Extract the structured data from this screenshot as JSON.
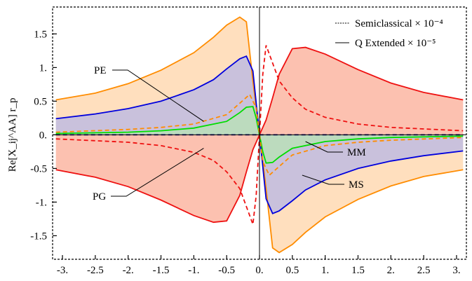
{
  "chart_data": {
    "type": "line",
    "title": "",
    "xlabel": "",
    "ylabel": "Re[X_ij^AA] r_p",
    "xlim": [
      -3.15,
      3.15
    ],
    "ylim": [
      -1.85,
      1.9
    ],
    "xticks": [
      -3.0,
      -2.5,
      -2.0,
      -1.5,
      -1.0,
      -0.5,
      0.0,
      0.5,
      1.0,
      1.5,
      2.0,
      2.5,
      3.0
    ],
    "xtick_labels": [
      "-3.",
      "-2.5",
      "-2.",
      "-1.5",
      "-1.",
      "-0.5",
      "0.",
      "0.5",
      "1.",
      "1.5",
      "2.",
      "2.5",
      "3."
    ],
    "yticks": [
      1.5,
      1.0,
      0.5,
      0.0,
      -0.5,
      -1.0,
      -1.5
    ],
    "ytick_labels": [
      "1.5",
      "1.",
      "0.5",
      "0.",
      "-0.5",
      "-1.",
      "-1.5"
    ],
    "grid": false,
    "legend_position": "top-right",
    "legend": [
      {
        "label": "Semiclassical × 10⁻⁴",
        "style": "dashed"
      },
      {
        "label": "Q Extended × 10⁻⁵",
        "style": "solid"
      }
    ],
    "annotations": [
      {
        "label": "PE",
        "target_x": -0.85,
        "target_y": 0.2
      },
      {
        "label": "PG",
        "target_x": -0.85,
        "target_y": -0.2
      },
      {
        "label": "MM",
        "target_x": 0.7,
        "target_y": -0.1
      },
      {
        "label": "MS",
        "target_x": 0.65,
        "target_y": -0.6
      }
    ],
    "colors": {
      "orange": "#ff8c00",
      "red": "#ee1111",
      "blue": "#0000dd",
      "green": "#00dd00",
      "navy": "#000080",
      "fill_orange": "#ffd9b3",
      "fill_red": "#fbb6a2",
      "fill_blue": "#b7b7e6",
      "fill_green": "#b6e6b0"
    },
    "series": [
      {
        "key": "orange_solid",
        "color": "#ff8c00",
        "style": "solid",
        "x": [
          -3.1,
          -2.5,
          -2.0,
          -1.5,
          -1.0,
          -0.7,
          -0.5,
          -0.3,
          -0.2,
          -0.1,
          0.0
        ],
        "y": [
          0.52,
          0.62,
          0.76,
          0.96,
          1.22,
          1.45,
          1.63,
          1.75,
          1.68,
          0.8,
          0.0
        ],
        "mirror": "odd"
      },
      {
        "key": "blue_solid",
        "color": "#0000dd",
        "style": "solid",
        "x": [
          -3.1,
          -2.5,
          -2.0,
          -1.5,
          -1.0,
          -0.7,
          -0.5,
          -0.3,
          -0.2,
          -0.1,
          0.0
        ],
        "y": [
          0.24,
          0.31,
          0.39,
          0.5,
          0.67,
          0.82,
          0.98,
          1.13,
          1.17,
          0.95,
          0.0
        ],
        "mirror": "odd"
      },
      {
        "key": "green_solid",
        "color": "#00dd00",
        "style": "solid",
        "x": [
          -3.1,
          -2.0,
          -1.5,
          -1.0,
          -0.5,
          -0.3,
          -0.2,
          -0.1,
          -0.05,
          0.0
        ],
        "y": [
          0.02,
          0.04,
          0.06,
          0.1,
          0.2,
          0.33,
          0.41,
          0.42,
          0.25,
          0.0
        ],
        "mirror": "odd"
      },
      {
        "key": "red_solid",
        "color": "#ee1111",
        "style": "solid",
        "x": [
          -3.1,
          -2.5,
          -2.0,
          -1.5,
          -1.0,
          -0.7,
          -0.5,
          -0.3,
          -0.2,
          -0.1,
          0.0
        ],
        "y": [
          -0.52,
          -0.63,
          -0.77,
          -0.97,
          -1.2,
          -1.3,
          -1.28,
          -0.9,
          -0.55,
          -0.22,
          0.0
        ],
        "mirror": "odd"
      },
      {
        "key": "orange_dashed",
        "color": "#ff8c00",
        "style": "dashed",
        "x": [
          -3.1,
          -2.0,
          -1.5,
          -1.0,
          -0.5,
          -0.3,
          -0.15,
          -0.05,
          0.0
        ],
        "y": [
          0.04,
          0.08,
          0.11,
          0.16,
          0.3,
          0.47,
          0.6,
          0.4,
          0.0
        ],
        "mirror": "odd"
      },
      {
        "key": "red_dashed",
        "color": "#ee1111",
        "style": "dashed",
        "x": [
          -3.1,
          -2.0,
          -1.5,
          -1.0,
          -0.7,
          -0.5,
          -0.3,
          -0.15,
          -0.1,
          -0.05,
          0.0
        ],
        "y": [
          -0.06,
          -0.11,
          -0.16,
          -0.26,
          -0.38,
          -0.55,
          -0.8,
          -1.2,
          -1.33,
          -0.9,
          0.0
        ],
        "mirror": "odd"
      },
      {
        "key": "navy_dashed",
        "color": "#000080",
        "style": "dashed",
        "x": [
          -3.1,
          0.0,
          3.1
        ],
        "y": [
          0.0,
          0.0,
          0.0
        ],
        "mirror": "none"
      }
    ],
    "bands": [
      {
        "color": "#ffd9b3",
        "opacity": 0.85,
        "upper": "orange_solid",
        "lower": "zero"
      },
      {
        "color": "#b7b7e6",
        "opacity": 0.75,
        "upper": "blue_solid",
        "lower": "zero"
      },
      {
        "color": "#b6e6b0",
        "opacity": 0.7,
        "upper": "green_solid",
        "lower": "zero"
      },
      {
        "color": "#fbb6a2",
        "opacity": 0.85,
        "upper": "red_solid",
        "lower": "zero"
      }
    ]
  }
}
